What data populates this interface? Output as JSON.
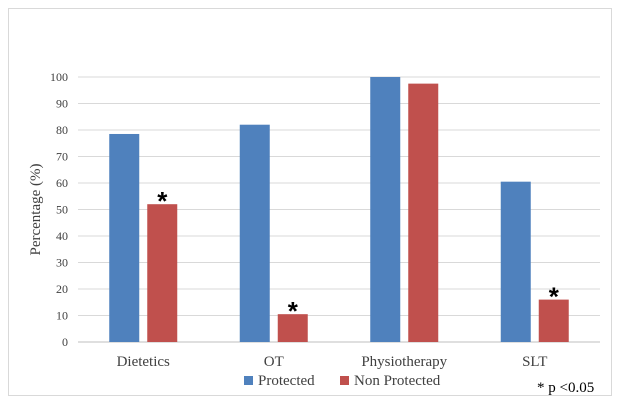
{
  "chart_data": {
    "type": "bar",
    "categories": [
      "Dietetics",
      "OT",
      "Physiotherapy",
      "SLT"
    ],
    "series": [
      {
        "name": "Protected",
        "values": [
          78.5,
          82,
          100,
          60.5
        ],
        "color": "#4f81bd"
      },
      {
        "name": "Non Protected",
        "values": [
          52,
          10.5,
          97.5,
          16
        ],
        "color": "#c0504d"
      }
    ],
    "ylabel": "Percentage (%)",
    "xlabel": "",
    "ylim": [
      0,
      100
    ],
    "yticks": [
      0,
      10,
      20,
      30,
      40,
      50,
      60,
      70,
      80,
      90,
      100
    ],
    "grid": true,
    "legend_position": "bottom",
    "significance_marks": [
      {
        "category": "Dietetics",
        "series": "Non Protected",
        "label": "*"
      },
      {
        "category": "OT",
        "series": "Non Protected",
        "label": "*"
      },
      {
        "category": "SLT",
        "series": "Non Protected",
        "label": "*"
      }
    ],
    "note": "* p <0.05"
  }
}
